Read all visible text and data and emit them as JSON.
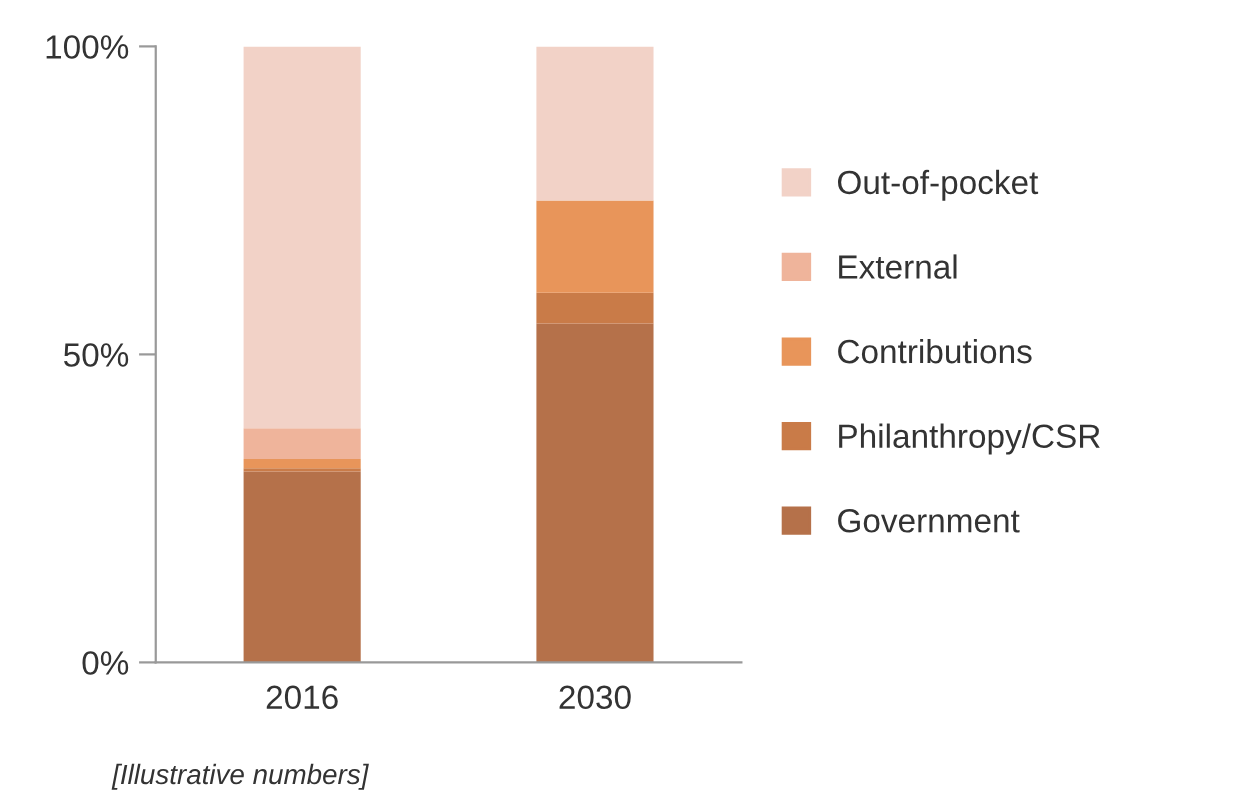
{
  "chart_data": {
    "type": "bar",
    "stacked": true,
    "categories": [
      "2016",
      "2030"
    ],
    "series": [
      {
        "name": "Government",
        "color": "#b5714a",
        "values": [
          31,
          55
        ]
      },
      {
        "name": "Philanthropy/CSR",
        "color": "#c97b48",
        "values": [
          0.5,
          5
        ]
      },
      {
        "name": "Contributions",
        "color": "#e8955a",
        "values": [
          1.5,
          15
        ]
      },
      {
        "name": "External",
        "color": "#efb49b",
        "values": [
          5,
          0
        ]
      },
      {
        "name": "Out-of-pocket",
        "color": "#f2d2c7",
        "values": [
          62,
          25
        ]
      }
    ],
    "ylim": [
      0,
      100
    ],
    "yticks": [
      {
        "value": 0,
        "label": "0%"
      },
      {
        "value": 50,
        "label": "50%"
      },
      {
        "value": 100,
        "label": "100%"
      }
    ],
    "grid": false,
    "legend": "right",
    "annotations": [
      "[Illustrative numbers]"
    ]
  }
}
